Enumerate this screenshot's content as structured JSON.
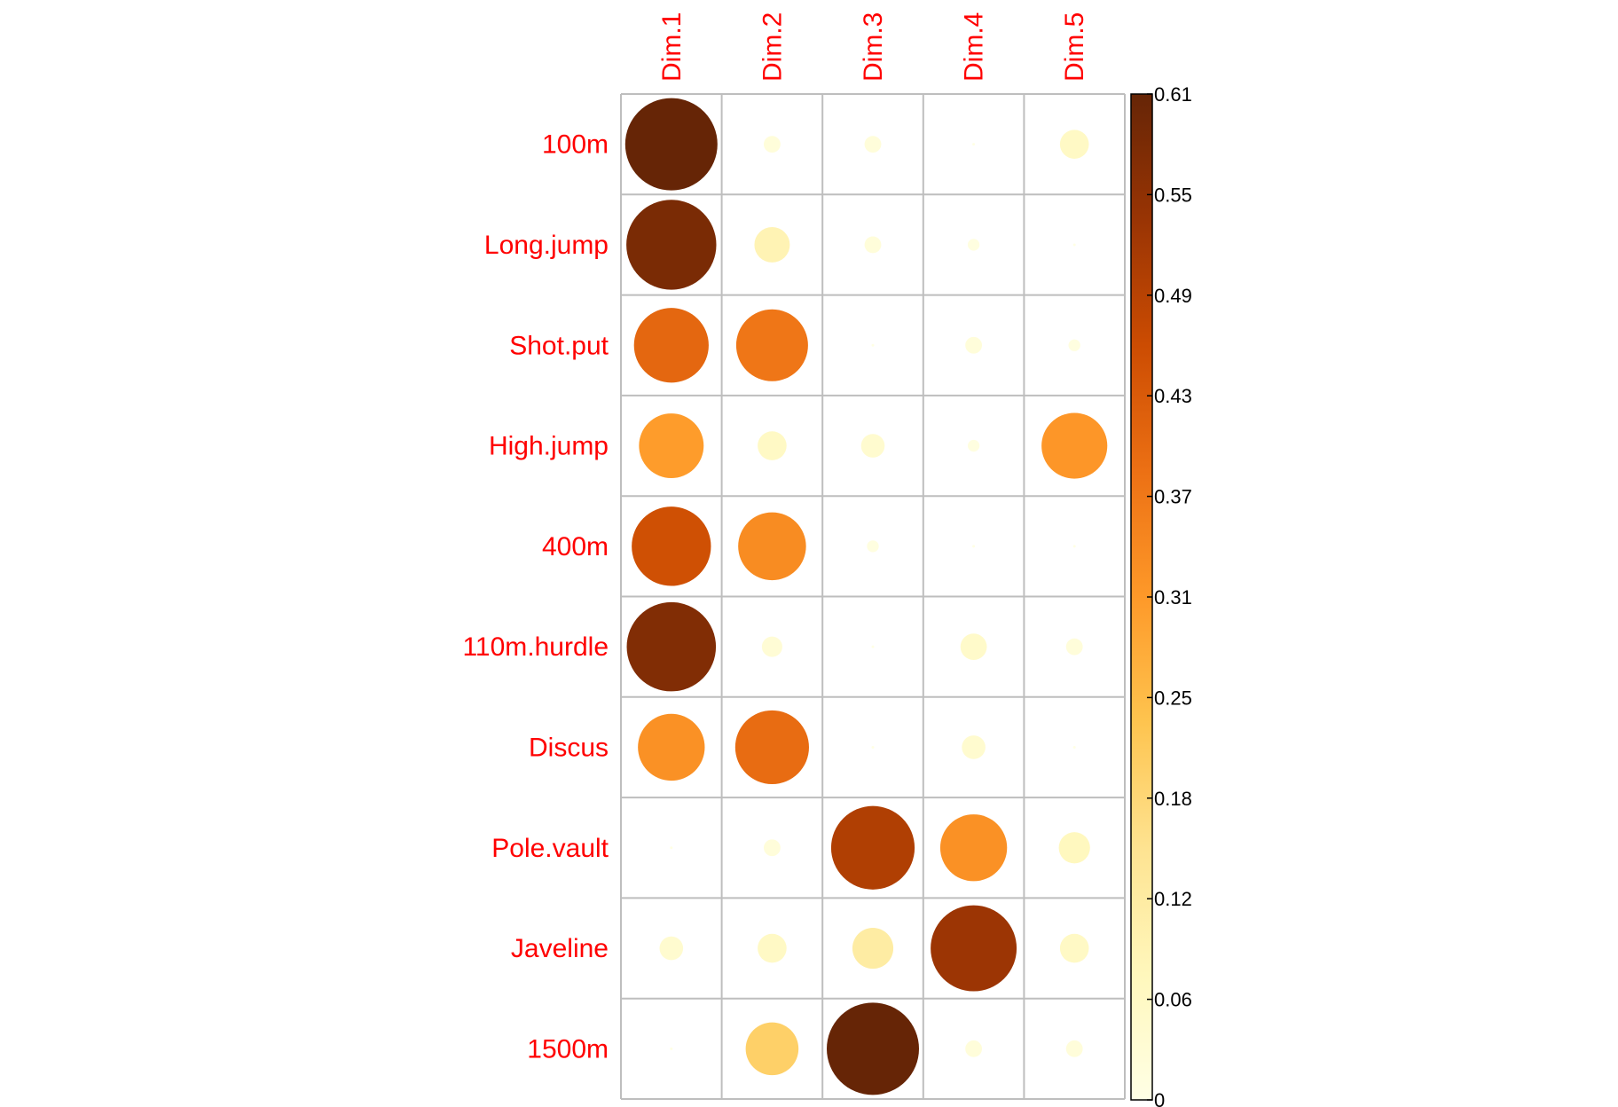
{
  "chart_data": {
    "type": "heatmap",
    "title": "",
    "rows": [
      "100m",
      "Long.jump",
      "Shot.put",
      "High.jump",
      "400m",
      "110m.hurdle",
      "Discus",
      "Pole.vault",
      "Javeline",
      "1500m"
    ],
    "columns": [
      "Dim.1",
      "Dim.2",
      "Dim.3",
      "Dim.4",
      "Dim.5"
    ],
    "values": [
      [
        0.61,
        0.02,
        0.02,
        0.0,
        0.06
      ],
      [
        0.58,
        0.09,
        0.02,
        0.01,
        0.0
      ],
      [
        0.4,
        0.37,
        0.0,
        0.02,
        0.01
      ],
      [
        0.3,
        0.06,
        0.04,
        0.01,
        0.31
      ],
      [
        0.45,
        0.33,
        0.01,
        0.0,
        0.0
      ],
      [
        0.57,
        0.03,
        0.0,
        0.05,
        0.02
      ],
      [
        0.32,
        0.39,
        0.0,
        0.04,
        0.0
      ],
      [
        0.0,
        0.02,
        0.5,
        0.32,
        0.07
      ],
      [
        0.04,
        0.06,
        0.12,
        0.53,
        0.06
      ],
      [
        0.0,
        0.2,
        0.61,
        0.02,
        0.02
      ]
    ],
    "encoding": "circle size and fill color proportional to value",
    "colorbar": {
      "range": [
        0,
        0.61
      ],
      "ticks": [
        "0",
        "0.06",
        "0.12",
        "0.18",
        "0.25",
        "0.31",
        "0.37",
        "0.43",
        "0.49",
        "0.55",
        "0.61"
      ],
      "palette": [
        "#ffffe5",
        "#fff7bc",
        "#fee391",
        "#fec44f",
        "#fe9929",
        "#ec7014",
        "#cc4c02",
        "#993404",
        "#662506"
      ]
    },
    "label_color": "#ff0000",
    "grid_color": "#bebebe",
    "grid": true,
    "legend": "right"
  }
}
